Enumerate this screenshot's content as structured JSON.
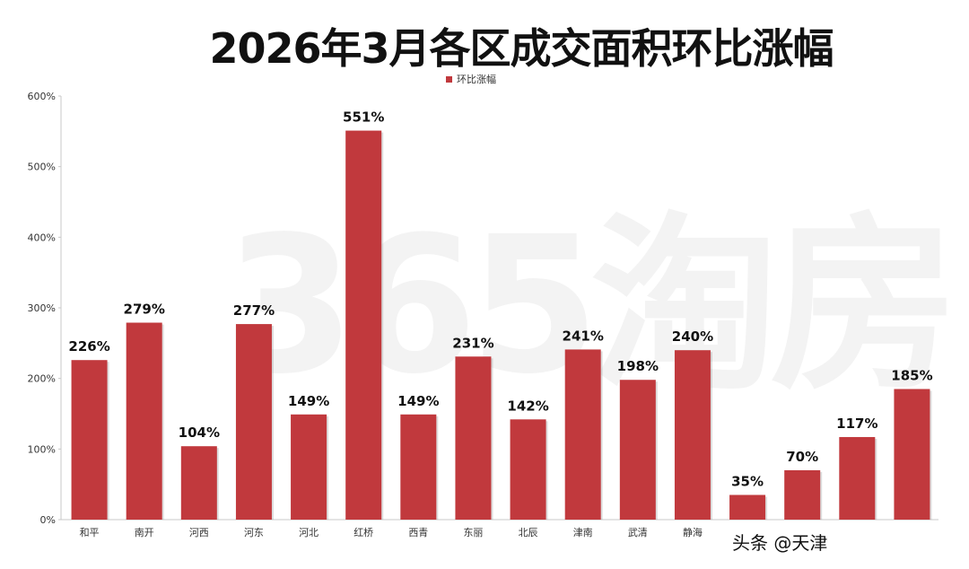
{
  "title": "2026年3月各区成交面积环比涨幅",
  "legend_label": "环比涨幅",
  "watermark": "365淘房",
  "credit": "头条 @天津",
  "colors": {
    "bar": "#c1393d",
    "axis": "#c8c8c8",
    "text": "#222222"
  },
  "chart_data": {
    "type": "bar",
    "title": "2026年3月各区成交面积环比涨幅",
    "categories": [
      "和平",
      "南开",
      "河西",
      "河东",
      "河北",
      "红桥",
      "西青",
      "东丽",
      "北辰",
      "津南",
      "武清",
      "静海",
      "",
      "",
      "",
      ""
    ],
    "series": [
      {
        "name": "环比涨幅",
        "values": [
          226,
          279,
          104,
          277,
          149,
          551,
          149,
          231,
          142,
          241,
          198,
          240,
          35,
          70,
          117,
          185
        ]
      }
    ],
    "data_labels": [
      "226%",
      "279%",
      "104%",
      "277%",
      "149%",
      "551%",
      "149%",
      "231%",
      "142%",
      "241%",
      "198%",
      "240%",
      "35%",
      "70%",
      "117%",
      "185%"
    ],
    "y_ticks": [
      "0%",
      "100%",
      "200%",
      "300%",
      "400%",
      "500%",
      "600%"
    ],
    "ylim": [
      0,
      600
    ],
    "grid": false,
    "legend_position": "top-center"
  }
}
